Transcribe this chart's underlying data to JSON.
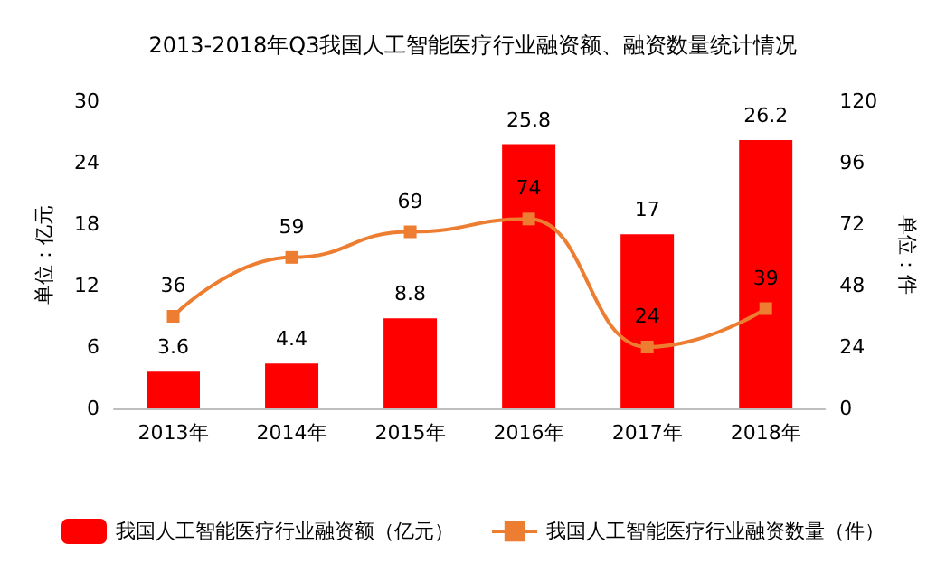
{
  "chart_data": {
    "type": "bar",
    "title": "2013-2018年Q3我国人工智能医疗行业融资额、融资数量统计情况",
    "ylabel": "单位：亿元",
    "y2label": "单位：件",
    "categories": [
      "2013年",
      "2014年",
      "2015年",
      "2016年",
      "2017年",
      "2018年"
    ],
    "series": [
      {
        "name": "我国人工智能医疗行业融资额（亿元）",
        "color": "#ff0000",
        "values": [
          3.6,
          4.4,
          8.8,
          25.8,
          17,
          26.2
        ]
      },
      {
        "name": "我国人工智能医疗行业融资数量（件）",
        "type": "line",
        "axis": "y2",
        "color": "#ed7d31",
        "marker": "square",
        "values": [
          36,
          59,
          69,
          74,
          24,
          39
        ]
      }
    ],
    "ylim": [
      0,
      30
    ],
    "yticks": [
      0,
      6,
      12,
      18,
      24,
      30
    ],
    "y2lim": [
      0,
      120
    ],
    "y2ticks": [
      0,
      24,
      48,
      72,
      96,
      120
    ],
    "data_labels": true,
    "legend": "bottom",
    "grid": false
  }
}
